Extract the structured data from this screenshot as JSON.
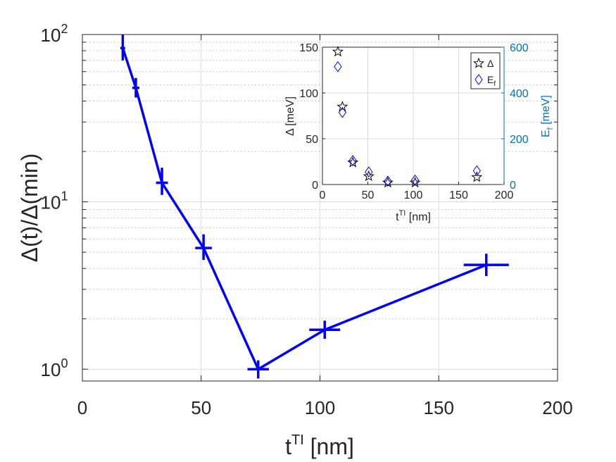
{
  "colors": {
    "series_main": "#0000ff",
    "series_delta": "#000000",
    "series_ef": "#0000ff",
    "axis_right": "#0072bd",
    "axis_text": "#262626"
  },
  "chart_data": [
    {
      "id": "main",
      "type": "line",
      "xlabel_base": "t",
      "xlabel_sup": "TI",
      "xlabel_tail": " [nm]",
      "ylabel": "Δ(t)/Δ(min)",
      "xlim": [
        0,
        200
      ],
      "ylim": [
        0.85,
        100
      ],
      "yscale": "log",
      "grid": true,
      "minor_grid": true,
      "x_ticks": [
        0,
        50,
        100,
        150,
        200
      ],
      "x_tick_labels": [
        "0",
        "50",
        "100",
        "150",
        "200"
      ],
      "y_ticks": [
        1,
        10,
        100
      ],
      "y_tick_labels": [
        {
          "base": "10",
          "exp": "0"
        },
        {
          "base": "10",
          "exp": "1"
        },
        {
          "base": "10",
          "exp": "2"
        }
      ],
      "series": [
        {
          "name": "Δ(t)/Δ(min)",
          "marker": "errorbar-cross",
          "x": [
            17,
            22.5,
            33.5,
            51,
            74,
            102,
            170
          ],
          "y": [
            83,
            48,
            13,
            5.3,
            1.0,
            1.72,
            4.2
          ],
          "x_err": [
            1,
            1.5,
            2.5,
            3.5,
            4.5,
            6.5,
            9.5
          ],
          "y_err_low": [
            13,
            6,
            2,
            0.8,
            0.12,
            0.2,
            0.6
          ],
          "y_err_high": [
            17,
            7,
            3,
            1.1,
            0.13,
            0.23,
            0.7
          ]
        }
      ]
    },
    {
      "id": "inset",
      "type": "scatter",
      "xlabel_base": "t",
      "xlabel_sup": "TI",
      "xlabel_tail": " [nm]",
      "ylabel_left": "Δ [meV]",
      "ylabel_right_base": "E",
      "ylabel_right_sub": "f",
      "ylabel_right_tail": " [meV]",
      "xlim": [
        0,
        200
      ],
      "ylim_left": [
        0,
        150
      ],
      "ylim_right": [
        0,
        600
      ],
      "grid": true,
      "x_ticks": [
        0,
        50,
        100,
        150,
        200
      ],
      "x_tick_labels": [
        "0",
        "50",
        "100",
        "150",
        "200"
      ],
      "y_ticks_left": [
        0,
        50,
        100,
        150
      ],
      "y_tick_labels_left": [
        "0",
        "50",
        "100",
        "150"
      ],
      "y_ticks_right": [
        0,
        200,
        400,
        600
      ],
      "y_tick_labels_right": [
        "0",
        "200",
        "400",
        "600"
      ],
      "legend_position": "top-right",
      "legend": [
        {
          "label": "Δ",
          "sub": "",
          "marker": "star"
        },
        {
          "label": "E",
          "sub": "f",
          "marker": "diamond"
        }
      ],
      "series": [
        {
          "name": "Δ",
          "axis": "left",
          "marker": "star",
          "x": [
            17,
            22,
            33.5,
            51,
            72,
            102,
            170
          ],
          "y": [
            145,
            85,
            24,
            9,
            2,
            2,
            8
          ]
        },
        {
          "name": "E_f",
          "axis": "right",
          "marker": "diamond",
          "x": [
            17,
            22,
            33.5,
            51,
            72,
            102,
            170
          ],
          "y": [
            515,
            315,
            105,
            55,
            15,
            20,
            60
          ]
        }
      ]
    }
  ]
}
